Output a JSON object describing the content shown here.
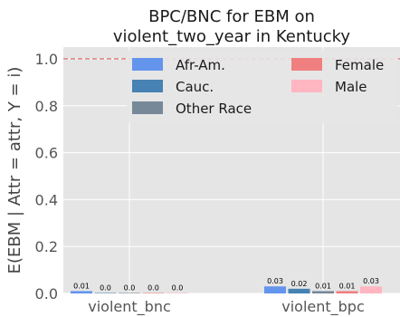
{
  "chart_data": {
    "type": "bar",
    "title_lines": [
      "BPC/BNC for EBM on",
      "violent_two_year in Kentucky"
    ],
    "ylabel": "E(EBM | Attr = attr, Y = i)",
    "xlabel": "",
    "categories": [
      "violent_bnc",
      "violent_bpc"
    ],
    "ylim": [
      0,
      1.05
    ],
    "yticks": [
      "0.0",
      "0.2",
      "0.4",
      "0.6",
      "0.8",
      "1.0"
    ],
    "reference_line": 1.0,
    "grid": true,
    "legend_position": "top",
    "series": [
      {
        "name": "Afr-Am.",
        "color": "#6495ED",
        "values": [
          0.01,
          0.03
        ],
        "labels": [
          "0.01",
          "0.03"
        ]
      },
      {
        "name": "Cauc.",
        "color": "#4682B4",
        "values": [
          0.0,
          0.02
        ],
        "labels": [
          "0.0",
          "0.02"
        ]
      },
      {
        "name": "Other Race",
        "color": "#778899",
        "values": [
          0.0,
          0.01
        ],
        "labels": [
          "0.0",
          "0.01"
        ]
      },
      {
        "name": "Female",
        "color": "#F08080",
        "values": [
          0.0,
          0.01
        ],
        "labels": [
          "0.0",
          "0.01"
        ]
      },
      {
        "name": "Male",
        "color": "#FFB6C1",
        "values": [
          0.0,
          0.03
        ],
        "labels": [
          "0.0",
          "0.03"
        ]
      }
    ]
  }
}
